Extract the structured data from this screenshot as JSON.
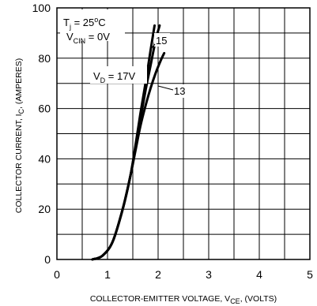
{
  "chart_data": {
    "type": "line",
    "title": "",
    "xlabel": {
      "prefix": "COLLECTOR-EMITTER VOLTAGE, V",
      "sub": "CE",
      "suffix": ", (VOLTS)"
    },
    "ylabel": {
      "prefix": "COLLECTOR CURRENT, I",
      "sub": "C",
      "suffix": ", (AMPERES)"
    },
    "xlim": [
      0,
      5
    ],
    "ylim": [
      0,
      100
    ],
    "xticks": [
      0,
      1,
      2,
      3,
      4,
      5
    ],
    "yticks": [
      0,
      20,
      40,
      60,
      80,
      100
    ],
    "xtick_labels": [
      "0",
      "1",
      "2",
      "3",
      "4",
      "5"
    ],
    "ytick_labels": [
      "0",
      "20",
      "40",
      "60",
      "80",
      "100"
    ],
    "grid": true,
    "grid_x_step": 0.5,
    "grid_y_step": 10,
    "conditions": {
      "tj": {
        "main": "T",
        "sub": "j",
        "mid": " = 25",
        "sup": "o",
        "tail": "C"
      },
      "vcin": {
        "main": "V",
        "sub": "CIN",
        "tail": " = 0V"
      }
    },
    "curve_label_vd": {
      "main": "V",
      "sub": "D",
      "tail": " = 17V"
    },
    "series": [
      {
        "label": "17",
        "x": [
          0.7,
          0.9,
          1.1,
          1.3,
          1.45,
          1.55,
          1.65,
          1.75,
          1.85,
          1.93
        ],
        "y": [
          0,
          1.5,
          7,
          20,
          33,
          45,
          58,
          70,
          83,
          93
        ]
      },
      {
        "label": "15",
        "x": [
          0.7,
          0.9,
          1.1,
          1.3,
          1.45,
          1.55,
          1.65,
          1.75,
          1.85,
          1.95,
          2.03
        ],
        "y": [
          0,
          1.5,
          7,
          20,
          33,
          44,
          56,
          67,
          77,
          87,
          93
        ]
      },
      {
        "label": "13",
        "x": [
          0.7,
          0.9,
          1.1,
          1.3,
          1.45,
          1.55,
          1.65,
          1.75,
          1.85,
          1.95,
          2.05,
          2.12
        ],
        "y": [
          0,
          1.5,
          7,
          20,
          33,
          43,
          53,
          61,
          68,
          74,
          79,
          82
        ]
      }
    ]
  }
}
